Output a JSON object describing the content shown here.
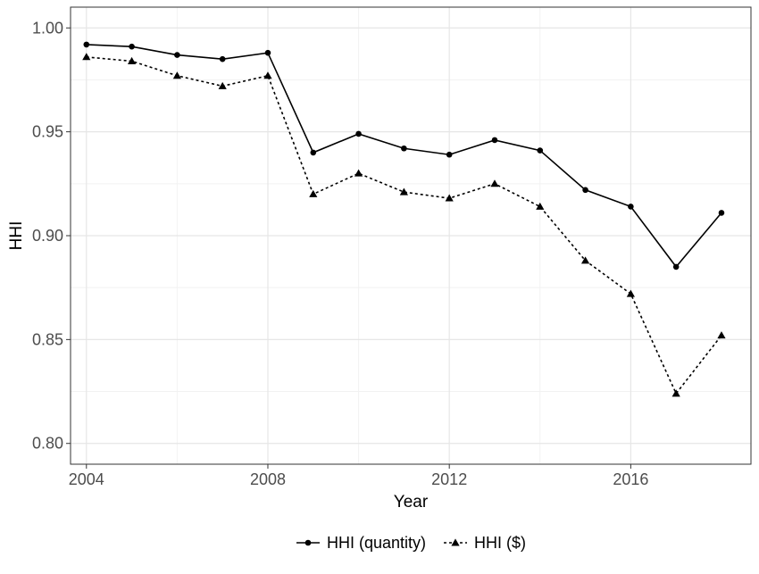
{
  "chart_data": {
    "type": "line",
    "title": "",
    "xlabel": "Year",
    "ylabel": "HHI",
    "x": [
      2004,
      2005,
      2006,
      2007,
      2008,
      2009,
      2010,
      2011,
      2012,
      2013,
      2014,
      2015,
      2016,
      2017,
      2018
    ],
    "xlim": [
      2003.65,
      2018.65
    ],
    "ylim": [
      0.79,
      1.01
    ],
    "x_ticks": [
      2004,
      2008,
      2012,
      2016
    ],
    "x_tick_labels": [
      "2004",
      "2008",
      "2012",
      "2016"
    ],
    "y_ticks": [
      0.8,
      0.85,
      0.9,
      0.95,
      1.0
    ],
    "y_tick_labels": [
      "0.80",
      "0.85",
      "0.90",
      "0.95",
      "1.00"
    ],
    "grid": true,
    "legend_position": "bottom",
    "series": [
      {
        "name": "HHI (quantity)",
        "marker": "circle",
        "line": "solid",
        "color": "#000000",
        "values": [
          0.992,
          0.991,
          0.987,
          0.985,
          0.988,
          0.94,
          0.949,
          0.942,
          0.939,
          0.946,
          0.941,
          0.922,
          0.914,
          0.885,
          0.911
        ]
      },
      {
        "name": "HHI ($)",
        "marker": "triangle",
        "line": "dotted",
        "color": "#000000",
        "values": [
          0.986,
          0.984,
          0.977,
          0.972,
          0.977,
          0.92,
          0.93,
          0.921,
          0.918,
          0.925,
          0.914,
          0.888,
          0.872,
          0.824,
          0.852
        ]
      }
    ]
  }
}
